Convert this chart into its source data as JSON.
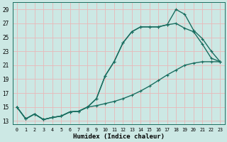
{
  "xlabel": "Humidex (Indice chaleur)",
  "bg_color": "#cce8e4",
  "grid_color": "#e8b8b8",
  "line_color": "#1a6e60",
  "xlim": [
    -0.5,
    23.5
  ],
  "ylim": [
    12.5,
    30.0
  ],
  "xticks": [
    0,
    1,
    2,
    3,
    4,
    5,
    6,
    7,
    8,
    9,
    10,
    11,
    12,
    13,
    14,
    15,
    16,
    17,
    18,
    19,
    20,
    21,
    22,
    23
  ],
  "yticks": [
    13,
    15,
    17,
    19,
    21,
    23,
    25,
    27,
    29
  ],
  "line1_x": [
    0,
    1,
    2,
    3,
    4,
    5,
    6,
    7,
    8,
    9,
    10,
    11,
    12,
    13,
    14,
    15,
    16,
    17,
    18,
    19,
    20,
    21,
    22,
    23
  ],
  "line1_y": [
    15.0,
    13.3,
    14.0,
    13.2,
    13.5,
    13.7,
    14.3,
    14.4,
    15.0,
    16.2,
    19.5,
    21.5,
    24.2,
    25.8,
    26.5,
    26.5,
    26.5,
    26.8,
    29.0,
    28.3,
    26.0,
    24.8,
    23.0,
    21.5
  ],
  "line2_x": [
    0,
    1,
    2,
    3,
    4,
    5,
    6,
    7,
    8,
    9,
    10,
    11,
    12,
    13,
    14,
    15,
    16,
    17,
    18,
    19,
    20,
    21,
    22,
    23
  ],
  "line2_y": [
    15.0,
    13.3,
    14.0,
    13.2,
    13.5,
    13.7,
    14.3,
    14.4,
    15.0,
    16.2,
    19.5,
    21.5,
    24.2,
    25.8,
    26.5,
    26.5,
    26.5,
    26.8,
    27.0,
    26.3,
    25.8,
    24.0,
    22.0,
    21.5
  ],
  "line3_x": [
    0,
    1,
    2,
    3,
    4,
    5,
    6,
    7,
    8,
    9,
    10,
    11,
    12,
    13,
    14,
    15,
    16,
    17,
    18,
    19,
    20,
    21,
    22,
    23
  ],
  "line3_y": [
    15.0,
    13.3,
    14.0,
    13.2,
    13.5,
    13.7,
    14.3,
    14.4,
    15.0,
    15.2,
    15.5,
    15.8,
    16.2,
    16.7,
    17.3,
    18.0,
    18.8,
    19.6,
    20.3,
    21.0,
    21.3,
    21.5,
    21.5,
    21.5
  ],
  "marker": "+",
  "marker_size": 3.5,
  "marker_edge_width": 0.8,
  "line_width": 1.0
}
